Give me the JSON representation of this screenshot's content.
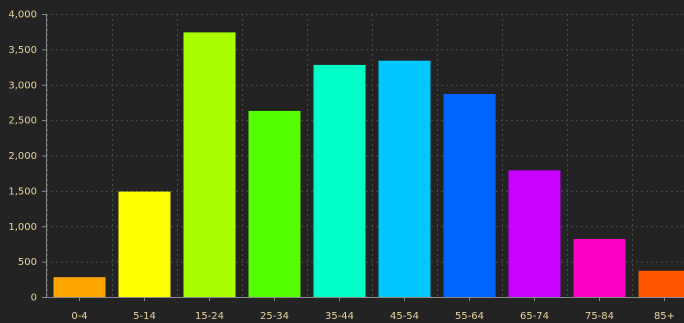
{
  "chart_data": {
    "type": "bar",
    "categories": [
      "0-4",
      "5-14",
      "15-24",
      "25-34",
      "35-44",
      "45-54",
      "55-64",
      "65-74",
      "75-84",
      "85+"
    ],
    "values": [
      280,
      1490,
      3740,
      2630,
      3280,
      3340,
      2870,
      1790,
      820,
      370
    ],
    "colors": [
      "#ffa500",
      "#ffff00",
      "#aaff00",
      "#55ff00",
      "#00ffc8",
      "#00c8ff",
      "#0064ff",
      "#c800ff",
      "#ff00c8",
      "#ff5500"
    ],
    "ylim": [
      0,
      4000
    ],
    "yticks": [
      0,
      500,
      1000,
      1500,
      2000,
      2500,
      3000,
      3500,
      4000
    ],
    "ytick_labels": [
      "0",
      "500",
      "1,000",
      "1,500",
      "2,000",
      "2,500",
      "3,000",
      "3,500",
      "4,000"
    ],
    "title": "",
    "xlabel": "",
    "ylabel": "",
    "grid": true,
    "legend": "none"
  }
}
